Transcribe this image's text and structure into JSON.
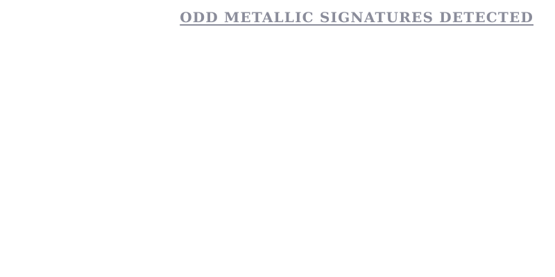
{
  "headline": {
    "text": "ODD METALLIC SIGNATURES DETECTED",
    "color": "#8a8c9a"
  },
  "colors": {
    "background": "#ffffff"
  }
}
